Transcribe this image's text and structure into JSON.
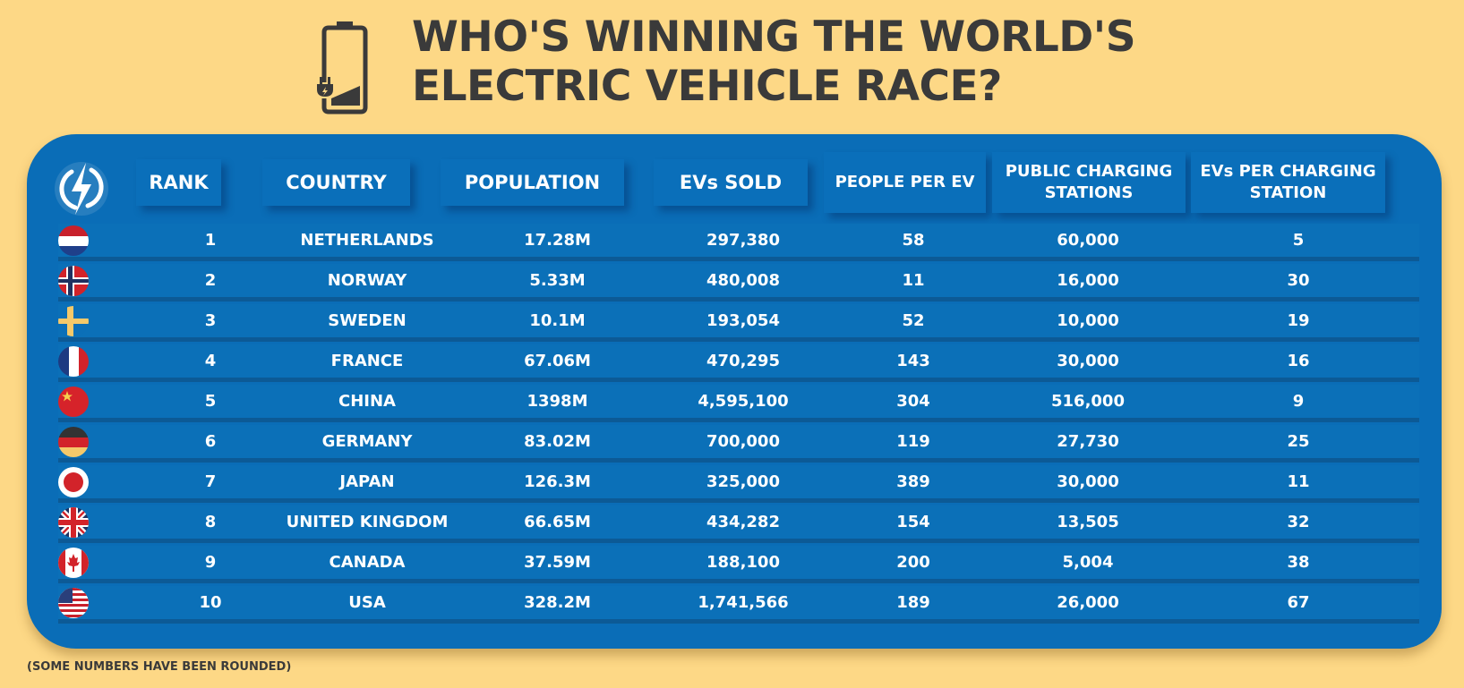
{
  "title": {
    "line1": "WHO'S WINNING THE WORLD'S",
    "line2": "ELECTRIC VEHICLE RACE?"
  },
  "footnote": "(SOME NUMBERS HAVE BEEN ROUNDED)",
  "colors": {
    "background": "#fdd886",
    "panel": "#0a6db7",
    "row_shadow": "#0c5a96",
    "title_text": "#3a3a3a",
    "cell_text": "#ffffff"
  },
  "chart_data": {
    "type": "table",
    "title": "WHO'S WINNING THE WORLD'S ELECTRIC VEHICLE RACE?",
    "columns": [
      "RANK",
      "COUNTRY",
      "POPULATION",
      "EVs SOLD",
      "PEOPLE PER EV",
      "PUBLIC CHARGING STATIONS",
      "EVs PER CHARGING STATION"
    ],
    "rows": [
      {
        "flag": "netherlands-flag-icon",
        "rank": "1",
        "country": "NETHERLANDS",
        "population": "17.28M",
        "evs_sold": "297,380",
        "people_per_ev": "58",
        "stations": "60,000",
        "evs_per_station": "5"
      },
      {
        "flag": "norway-flag-icon",
        "rank": "2",
        "country": "NORWAY",
        "population": "5.33M",
        "evs_sold": "480,008",
        "people_per_ev": "11",
        "stations": "16,000",
        "evs_per_station": "30"
      },
      {
        "flag": "sweden-flag-icon",
        "rank": "3",
        "country": "SWEDEN",
        "population": "10.1M",
        "evs_sold": "193,054",
        "people_per_ev": "52",
        "stations": "10,000",
        "evs_per_station": "19"
      },
      {
        "flag": "france-flag-icon",
        "rank": "4",
        "country": "FRANCE",
        "population": "67.06M",
        "evs_sold": "470,295",
        "people_per_ev": "143",
        "stations": "30,000",
        "evs_per_station": "16"
      },
      {
        "flag": "china-flag-icon",
        "rank": "5",
        "country": "CHINA",
        "population": "1398M",
        "evs_sold": "4,595,100",
        "people_per_ev": "304",
        "stations": "516,000",
        "evs_per_station": "9"
      },
      {
        "flag": "germany-flag-icon",
        "rank": "6",
        "country": "GERMANY",
        "population": "83.02M",
        "evs_sold": "700,000",
        "people_per_ev": "119",
        "stations": "27,730",
        "evs_per_station": "25"
      },
      {
        "flag": "japan-flag-icon",
        "rank": "7",
        "country": "JAPAN",
        "population": "126.3M",
        "evs_sold": "325,000",
        "people_per_ev": "389",
        "stations": "30,000",
        "evs_per_station": "11"
      },
      {
        "flag": "uk-flag-icon",
        "rank": "8",
        "country": "UNITED KINGDOM",
        "population": "66.65M",
        "evs_sold": "434,282",
        "people_per_ev": "154",
        "stations": "13,505",
        "evs_per_station": "32"
      },
      {
        "flag": "canada-flag-icon",
        "rank": "9",
        "country": "CANADA",
        "population": "37.59M",
        "evs_sold": "188,100",
        "people_per_ev": "200",
        "stations": "5,004",
        "evs_per_station": "38"
      },
      {
        "flag": "usa-flag-icon",
        "rank": "10",
        "country": "USA",
        "population": "328.2M",
        "evs_sold": "1,741,566",
        "people_per_ev": "189",
        "stations": "26,000",
        "evs_per_station": "67"
      }
    ]
  }
}
